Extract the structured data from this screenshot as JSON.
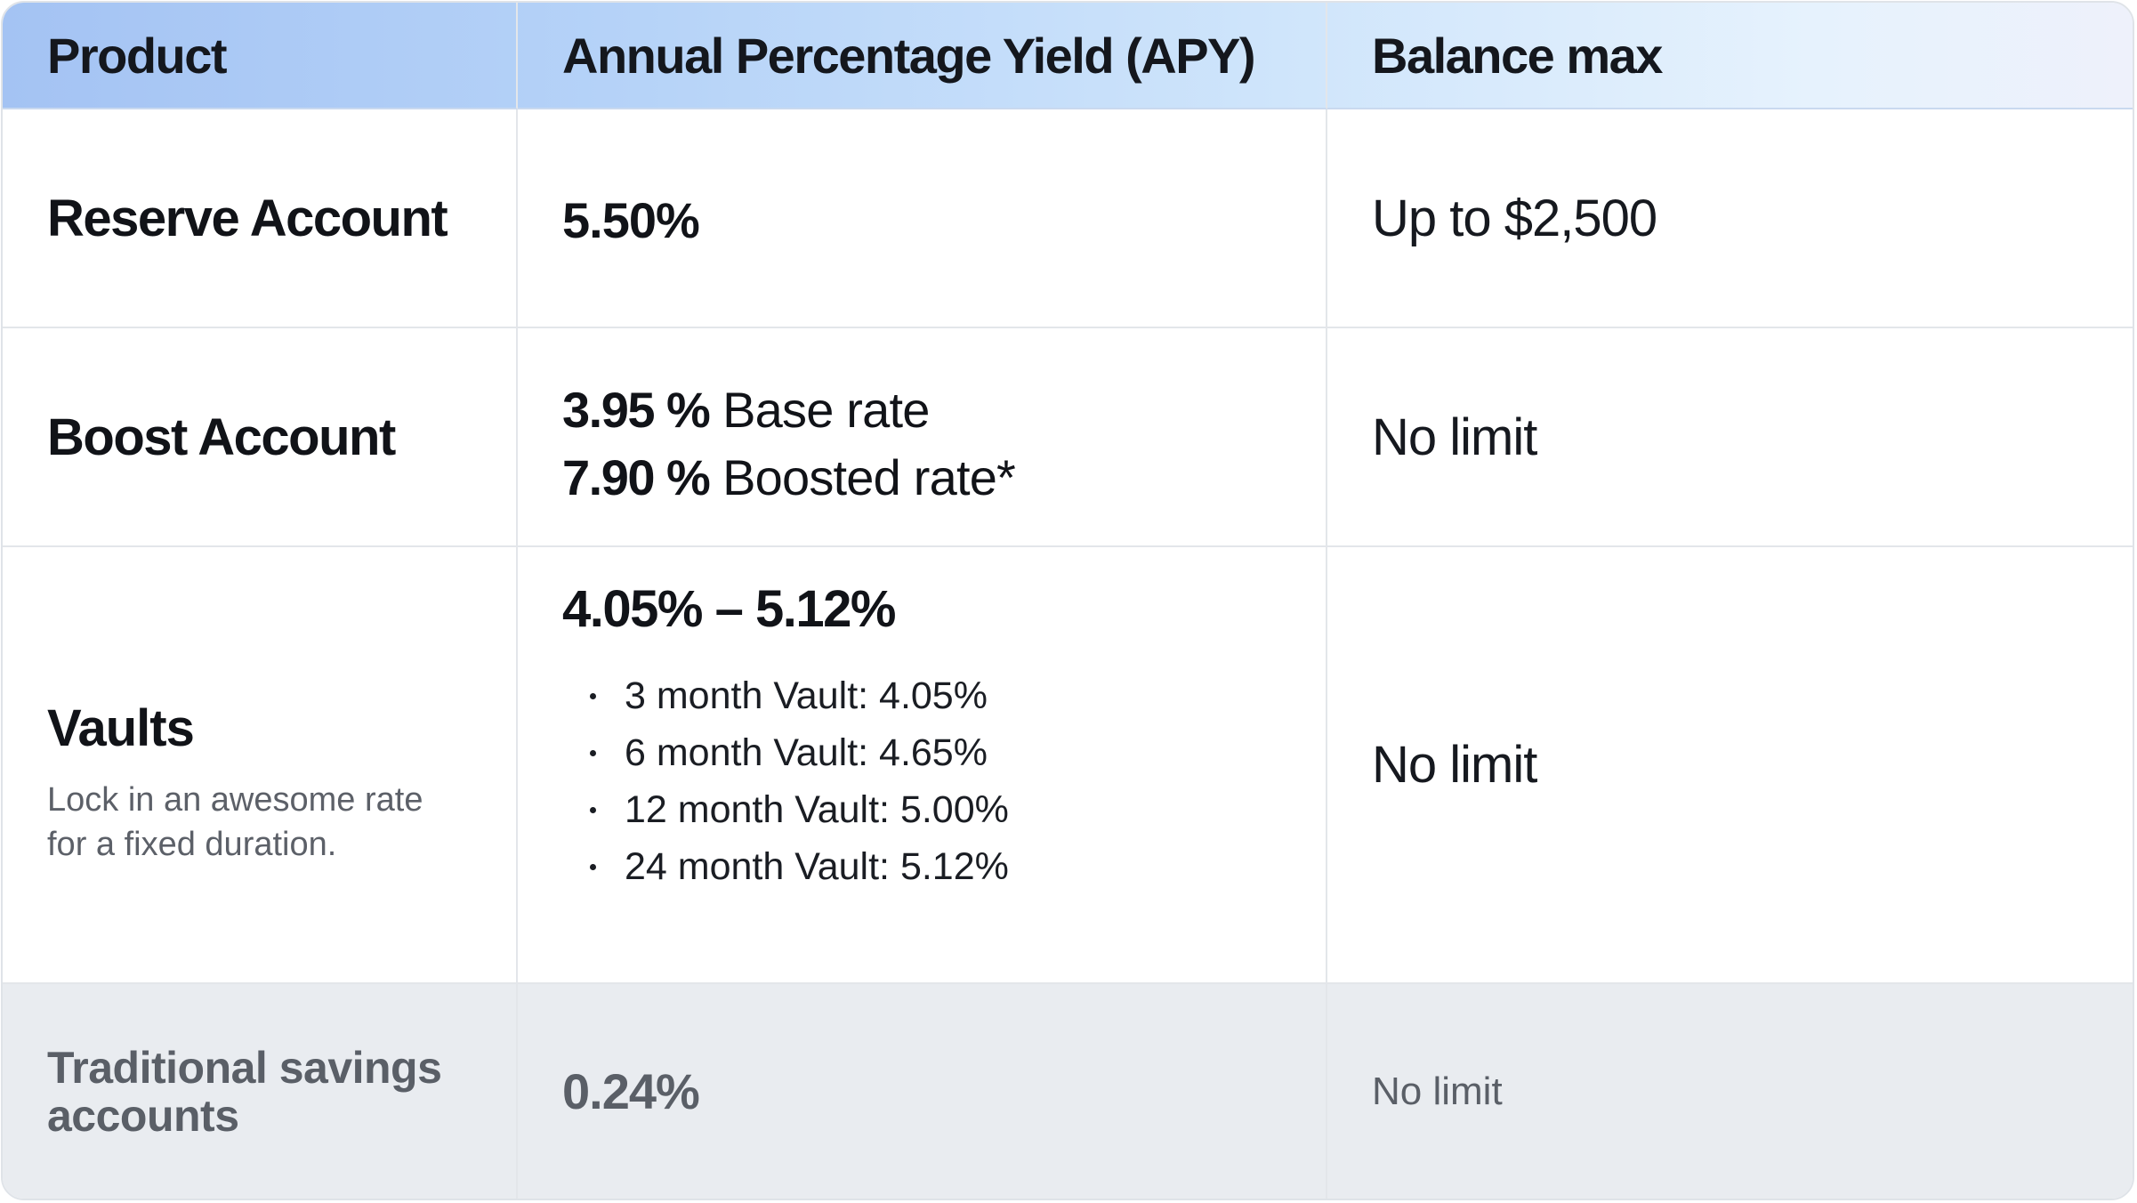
{
  "header": {
    "product": "Product",
    "apy": "Annual Percentage Yield (APY)",
    "balance": "Balance max"
  },
  "rows": [
    {
      "product": "Reserve Account",
      "apy": "5.50%",
      "balance": "Up to $2,500"
    },
    {
      "product": "Boost Account",
      "apy_base_value": "3.95 %",
      "apy_base_label": "Base rate",
      "apy_boost_value": "7.90 %",
      "apy_boost_label": "Boosted rate*",
      "balance": "No limit"
    },
    {
      "product": "Vaults",
      "description": "Lock in an awesome rate for a fixed duration.",
      "apy": "4.05% – 5.12%",
      "vaults": [
        "3 month Vault: 4.05%",
        "6 month Vault: 4.65%",
        "12 month Vault: 5.00%",
        "24 month Vault: 5.12%"
      ],
      "balance": "No limit"
    },
    {
      "product": "Traditional savings accounts",
      "apy": "0.24%",
      "balance": "No limit"
    }
  ],
  "colors": {
    "header_gradient_start": "#a4c3f3",
    "header_gradient_end": "#eef1fb",
    "muted_row_bg": "#e9ecf0",
    "muted_text": "#5a5f67"
  }
}
